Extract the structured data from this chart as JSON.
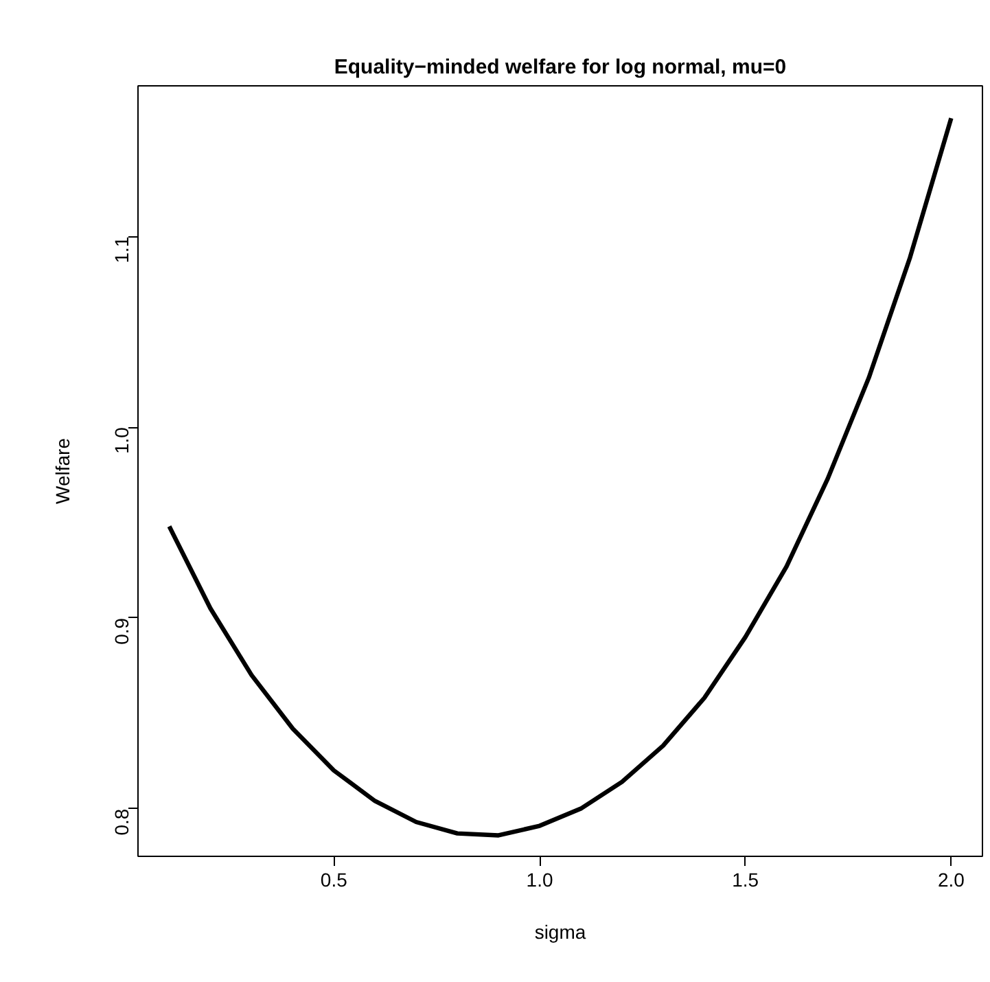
{
  "chart_data": {
    "type": "line",
    "title": "Equality−minded welfare for log normal, mu=0",
    "xlabel": "sigma",
    "ylabel": "Welfare",
    "x": [
      0.1,
      0.2,
      0.3,
      0.4,
      0.5,
      0.6,
      0.7,
      0.8,
      0.9,
      1.0,
      1.1,
      1.2,
      1.3,
      1.4,
      1.5,
      1.6,
      1.7,
      1.8,
      1.9,
      2.0
    ],
    "series": [
      {
        "color": "#000000",
        "values": [
          0.948,
          0.905,
          0.87,
          0.842,
          0.82,
          0.804,
          0.793,
          0.787,
          0.786,
          0.791,
          0.8,
          0.814,
          0.833,
          0.858,
          0.89,
          0.927,
          0.973,
          1.026,
          1.089,
          1.162
        ]
      }
    ],
    "xlim": [
      0.024,
      2.076
    ],
    "ylim": [
      0.775,
      1.179
    ],
    "xticks": [
      {
        "value": 0.5,
        "label": "0.5"
      },
      {
        "value": 1.0,
        "label": "1.0"
      },
      {
        "value": 1.5,
        "label": "1.5"
      },
      {
        "value": 2.0,
        "label": "2.0"
      }
    ],
    "yticks": [
      {
        "value": 0.8,
        "label": "0.8"
      },
      {
        "value": 0.9,
        "label": "0.9"
      },
      {
        "value": 1.0,
        "label": "1.0"
      },
      {
        "value": 1.1,
        "label": "1.1"
      }
    ],
    "grid": false,
    "marker": "none",
    "line_style": "solid"
  }
}
